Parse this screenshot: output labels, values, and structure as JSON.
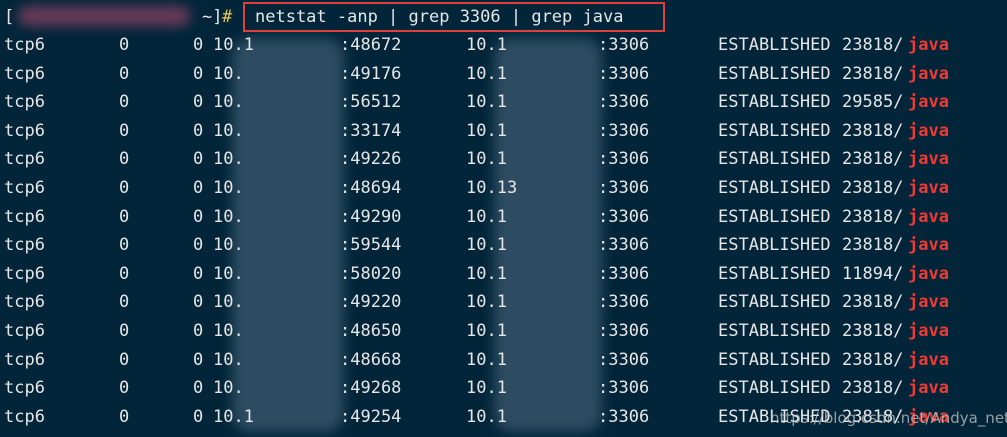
{
  "prompt": {
    "open": "[",
    "close": "~]",
    "sign": "#"
  },
  "command": "netstat -anp | grep 3306 | grep java",
  "rows": [
    [
      "tcp6",
      "0",
      "0",
      "10.1",
      ":48672",
      "10.1",
      ":3306",
      "ESTABLISHED",
      "23818/",
      "java"
    ],
    [
      "tcp6",
      "0",
      "0",
      "10.",
      ":49176",
      "10.1",
      ":3306",
      "ESTABLISHED",
      "23818/",
      "java"
    ],
    [
      "tcp6",
      "0",
      "0",
      "10.",
      ":56512",
      "10.1",
      ":3306",
      "ESTABLISHED",
      "29585/",
      "java"
    ],
    [
      "tcp6",
      "0",
      "0",
      "10.",
      ":33174",
      "10.1",
      ":3306",
      "ESTABLISHED",
      "23818/",
      "java"
    ],
    [
      "tcp6",
      "0",
      "0",
      "10.",
      ":49226",
      "10.1",
      ":3306",
      "ESTABLISHED",
      "23818/",
      "java"
    ],
    [
      "tcp6",
      "0",
      "0",
      "10.",
      ":48694",
      "10.13",
      ":3306",
      "ESTABLISHED",
      "23818/",
      "java"
    ],
    [
      "tcp6",
      "0",
      "0",
      "10.",
      ":49290",
      "10.1",
      ":3306",
      "ESTABLISHED",
      "23818/",
      "java"
    ],
    [
      "tcp6",
      "0",
      "0",
      "10.",
      ":59544",
      "10.1",
      ":3306",
      "ESTABLISHED",
      "23818/",
      "java"
    ],
    [
      "tcp6",
      "0",
      "0",
      "10.",
      ":58020",
      "10.1",
      ":3306",
      "ESTABLISHED",
      "11894/",
      "java"
    ],
    [
      "tcp6",
      "0",
      "0",
      "10.",
      ":49220",
      "10.1",
      ":3306",
      "ESTABLISHED",
      "23818/",
      "java"
    ],
    [
      "tcp6",
      "0",
      "0",
      "10.",
      ":48650",
      "10.1",
      ":3306",
      "ESTABLISHED",
      "23818/",
      "java"
    ],
    [
      "tcp6",
      "0",
      "0",
      "10.",
      ":48668",
      "10.1",
      ":3306",
      "ESTABLISHED",
      "23818/",
      "java"
    ],
    [
      "tcp6",
      "0",
      "0",
      "10.",
      ":49268",
      "10.1",
      ":3306",
      "ESTABLISHED",
      "23818/",
      "java"
    ],
    [
      "tcp6",
      "0",
      "0",
      "10.1",
      ":49254",
      "10.1",
      ":3306",
      "ESTABLISHED",
      "23818/",
      "java"
    ]
  ],
  "watermark": "https://blog.csdn.net/Andya_net"
}
